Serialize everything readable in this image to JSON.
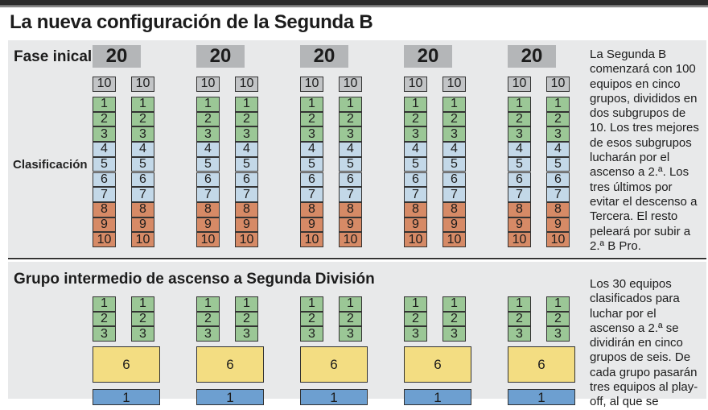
{
  "title": "La nueva configuración de la Segunda B",
  "phase1": {
    "heading": "Fase inical",
    "classification_label": "Clasificación",
    "group_total": "20",
    "subgroup_total": "10",
    "positions": [
      "1",
      "2",
      "3",
      "4",
      "5",
      "6",
      "7",
      "8",
      "9",
      "10"
    ],
    "groups_count": 5,
    "description": "La Segunda B comenzará con 100 equipos en cinco grupos, divididos en dos subgrupos de 10. Los tres mejores de esos subgrupos lucharán por el ascenso a 2.ª. Los tres últimos por evitar el descenso a Tercera. El resto peleará por subir a 2.ª B Pro."
  },
  "phase2": {
    "heading": "Grupo intermedio de ascenso a Segunda División",
    "positions": [
      "1",
      "2",
      "3"
    ],
    "group_size": "6",
    "next_rank": "1",
    "description": "Los 30 equipos clasificados para luchar por el ascenso a 2.ª se dividirán en cinco grupos de seis. De cada grupo pasarán tres equipos al play-off, al que se"
  },
  "colors": {
    "promotion_green": "#9bc796",
    "middle_blue": "#c3d8e8",
    "relegation_orange": "#d68a66",
    "total_grey": "#b4b6b8",
    "group_yellow": "#f3dd82",
    "final_blue": "#6d9fd0",
    "panel_grey": "#e8e9ea"
  }
}
